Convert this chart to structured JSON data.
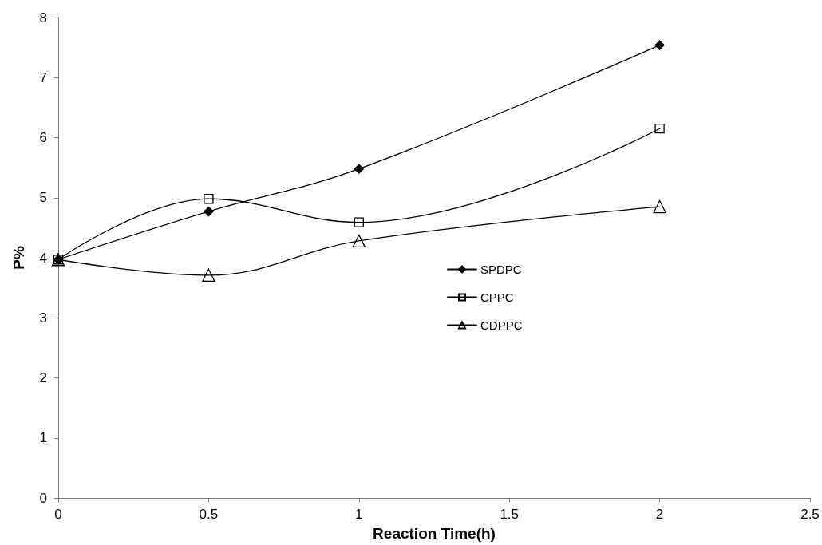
{
  "chart_data": {
    "type": "line",
    "xlabel": "Reaction Time(h)",
    "ylabel": "P%",
    "x": [
      0,
      0.5,
      1,
      2
    ],
    "series": [
      {
        "name": "SPDPC",
        "color": "#000000",
        "marker": "diamond",
        "values": [
          3.97,
          4.77,
          5.48,
          7.54
        ]
      },
      {
        "name": "CPPC",
        "color": "#000000",
        "marker": "square",
        "values": [
          3.97,
          4.98,
          4.59,
          6.15
        ]
      },
      {
        "name": "CDPPC",
        "color": "#000000",
        "marker": "triangle",
        "values": [
          3.97,
          3.71,
          4.28,
          4.85
        ]
      }
    ],
    "xlim": [
      0,
      2.5
    ],
    "xticks": [
      0,
      0.5,
      1,
      1.5,
      2,
      2.5
    ],
    "ylim": [
      0,
      8
    ],
    "yticks": [
      0,
      1,
      2,
      3,
      4,
      5,
      6,
      7,
      8
    ],
    "grid": false,
    "legend": "right",
    "line_style": "solid"
  }
}
